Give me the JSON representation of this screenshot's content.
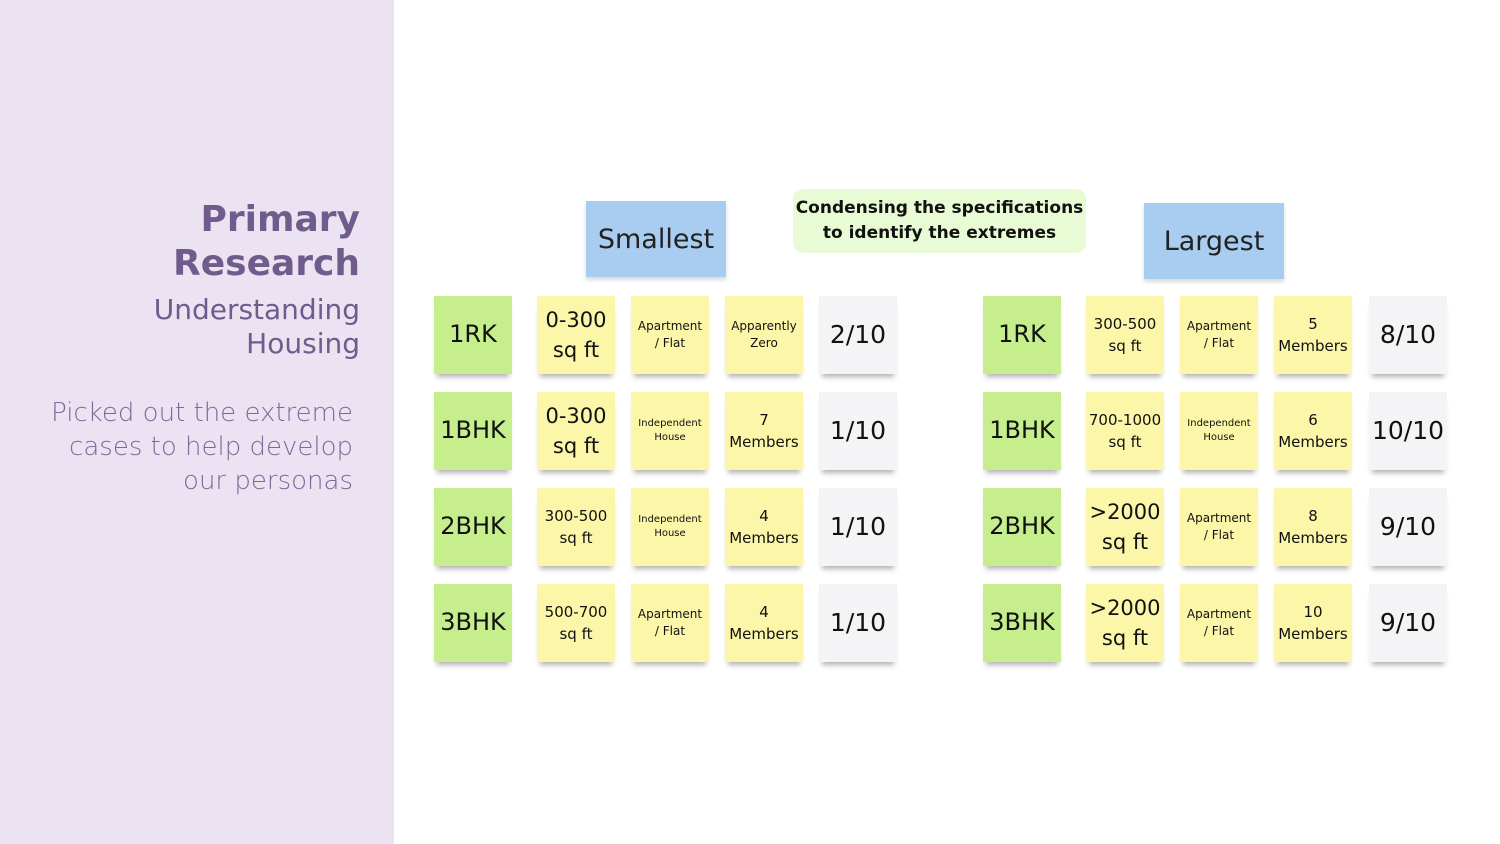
{
  "sidebar": {
    "title_line1": "Primary",
    "title_line2": "Research",
    "subtitle_line1": "Understanding",
    "subtitle_line2": "Housing",
    "desc_line1": "Picked out the extreme",
    "desc_line2": "cases to help develop",
    "desc_line3": "our personas"
  },
  "headers": {
    "smallest": "Smallest",
    "largest": "Largest",
    "callout_line1": "Condensing the specifications",
    "callout_line2": "to identify the extremes"
  },
  "smallest": [
    {
      "type": "1RK",
      "area": [
        "0-300",
        "sq ft"
      ],
      "house": [
        "Apartment",
        "/ Flat"
      ],
      "members": [
        "Apparently",
        "Zero"
      ],
      "rating": "2/10"
    },
    {
      "type": "1BHK",
      "area": [
        "0-300",
        "sq ft"
      ],
      "house": [
        "Independent",
        "House"
      ],
      "members": [
        "7",
        "Members"
      ],
      "rating": "1/10"
    },
    {
      "type": "2BHK",
      "area": [
        "300-500",
        "sq ft"
      ],
      "house": [
        "Independent",
        "House"
      ],
      "members": [
        "4",
        "Members"
      ],
      "rating": "1/10"
    },
    {
      "type": "3BHK",
      "area": [
        "500-700",
        "sq ft"
      ],
      "house": [
        "Apartment",
        "/ Flat"
      ],
      "members": [
        "4",
        "Members"
      ],
      "rating": "1/10"
    }
  ],
  "largest": [
    {
      "type": "1RK",
      "area": [
        "300-500",
        "sq ft"
      ],
      "house": [
        "Apartment",
        "/ Flat"
      ],
      "members": [
        "5",
        "Members"
      ],
      "rating": "8/10"
    },
    {
      "type": "1BHK",
      "area": [
        "700-1000",
        "sq ft"
      ],
      "house": [
        "Independent",
        "House"
      ],
      "members": [
        "6",
        "Members"
      ],
      "rating": "10/10"
    },
    {
      "type": "2BHK",
      "area": [
        ">2000",
        "sq ft"
      ],
      "house": [
        "Apartment",
        "/ Flat"
      ],
      "members": [
        "8",
        "Members"
      ],
      "rating": "9/10"
    },
    {
      "type": "3BHK",
      "area": [
        ">2000",
        "sq ft"
      ],
      "house": [
        "Apartment",
        "/ Flat"
      ],
      "members": [
        "10",
        "Members"
      ],
      "rating": "9/10"
    }
  ]
}
